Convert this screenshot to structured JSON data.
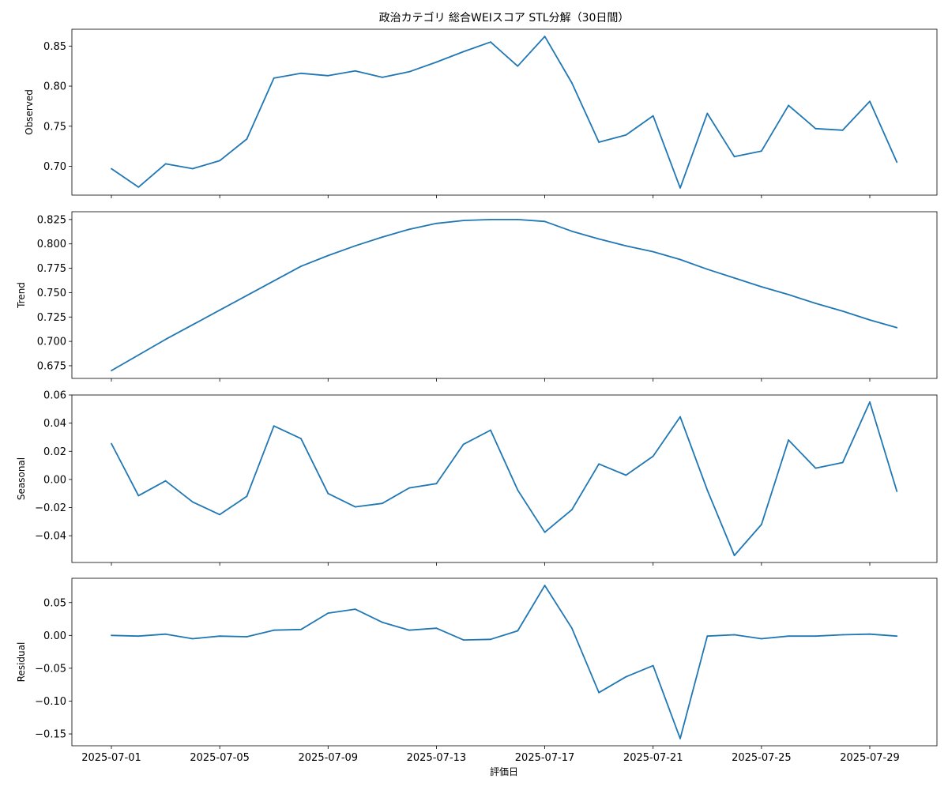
{
  "chart_data": {
    "type": "line",
    "title": "政治カテゴリ 総合WEIスコア STL分解（30日間）",
    "xlabel": "評価日",
    "color": "#1f77b4",
    "x": [
      "2025-07-01",
      "2025-07-02",
      "2025-07-03",
      "2025-07-04",
      "2025-07-05",
      "2025-07-06",
      "2025-07-07",
      "2025-07-08",
      "2025-07-09",
      "2025-07-10",
      "2025-07-11",
      "2025-07-12",
      "2025-07-13",
      "2025-07-14",
      "2025-07-15",
      "2025-07-16",
      "2025-07-17",
      "2025-07-18",
      "2025-07-19",
      "2025-07-20",
      "2025-07-21",
      "2025-07-22",
      "2025-07-23",
      "2025-07-24",
      "2025-07-25",
      "2025-07-26",
      "2025-07-27",
      "2025-07-28",
      "2025-07-29",
      "2025-07-30"
    ],
    "x_ticks": [
      "2025-07-01",
      "2025-07-05",
      "2025-07-09",
      "2025-07-13",
      "2025-07-17",
      "2025-07-21",
      "2025-07-25",
      "2025-07-29"
    ],
    "panels": [
      {
        "name": "observed",
        "ylabel": "Observed",
        "ylim": [
          0.664,
          0.871
        ],
        "yticks": [
          "0.70",
          "0.75",
          "0.80",
          "0.85"
        ],
        "values": [
          0.697,
          0.674,
          0.703,
          0.697,
          0.707,
          0.734,
          0.81,
          0.816,
          0.813,
          0.819,
          0.811,
          0.818,
          0.83,
          0.843,
          0.855,
          0.825,
          0.862,
          0.804,
          0.73,
          0.739,
          0.763,
          0.673,
          0.766,
          0.712,
          0.719,
          0.776,
          0.747,
          0.745,
          0.781,
          0.705
        ]
      },
      {
        "name": "trend",
        "ylabel": "Trend",
        "ylim": [
          0.662,
          0.833
        ],
        "yticks": [
          "0.675",
          "0.700",
          "0.725",
          "0.750",
          "0.775",
          "0.800",
          "0.825"
        ],
        "values": [
          0.67,
          0.686,
          0.702,
          0.717,
          0.732,
          0.747,
          0.762,
          0.777,
          0.788,
          0.798,
          0.807,
          0.815,
          0.821,
          0.824,
          0.825,
          0.825,
          0.823,
          0.813,
          0.805,
          0.798,
          0.792,
          0.784,
          0.774,
          0.765,
          0.756,
          0.748,
          0.739,
          0.731,
          0.722,
          0.714
        ]
      },
      {
        "name": "seasonal",
        "ylabel": "Seasonal",
        "ylim": [
          -0.059,
          0.06
        ],
        "yticks": [
          "−0.04",
          "−0.02",
          "0.00",
          "0.02",
          "0.04",
          "0.06"
        ],
        "values": [
          0.0255,
          -0.0115,
          -0.001,
          -0.016,
          -0.025,
          -0.012,
          0.038,
          0.029,
          -0.01,
          -0.0195,
          -0.017,
          -0.006,
          -0.003,
          0.025,
          0.035,
          -0.0075,
          -0.0375,
          -0.0215,
          0.011,
          0.003,
          0.0165,
          0.0445,
          -0.0075,
          -0.054,
          -0.032,
          0.028,
          0.008,
          0.012,
          0.055,
          -0.0085
        ]
      },
      {
        "name": "residual",
        "ylabel": "Residual",
        "ylim": [
          -0.168,
          0.087
        ],
        "yticks": [
          "−0.15",
          "−0.10",
          "−0.05",
          "0.00",
          "0.05"
        ],
        "values": [
          0.0,
          -0.001,
          0.002,
          -0.005,
          -0.001,
          -0.002,
          0.008,
          0.009,
          0.034,
          0.04,
          0.02,
          0.008,
          0.011,
          -0.007,
          -0.006,
          0.007,
          0.076,
          0.011,
          -0.087,
          -0.063,
          -0.046,
          -0.157,
          -0.001,
          0.001,
          -0.005,
          -0.001,
          -0.001,
          0.001,
          0.002,
          -0.001
        ]
      }
    ]
  }
}
